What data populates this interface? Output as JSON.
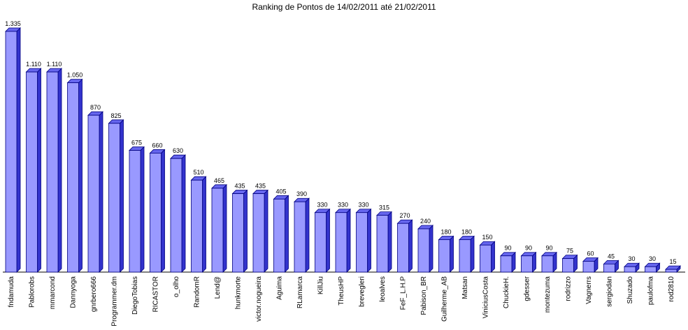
{
  "chart_data": {
    "type": "bar",
    "title": "Ranking de Pontos de 14/02/2011 até 21/02/2011",
    "xlabel": "",
    "ylabel": "",
    "ylim": [
      0,
      1335
    ],
    "grid": false,
    "legend": "none",
    "bar_color": "#9999ff",
    "bar_side_color": "#3333cc",
    "bar_top_color": "#6666ee",
    "bar_outline_color": "#000080",
    "categories": [
      "fndamuda",
      "Pablorobs",
      "mmarcond",
      "Dannyoga",
      "gnrbero666",
      "Programmer.dm",
      "DiegoTobias",
      "RICASTOR",
      "o_olho",
      "RandomR",
      "Lend@",
      "hunkmorte",
      "victor.nogueira",
      "Aguima",
      "RLamarca",
      "KillJiu",
      "TheusHP",
      "brevegleri",
      "leoalves",
      "FeF_L.H.P",
      "Pabison_BR",
      "Guilherme_AB",
      "Matsan",
      "ViniciusCosta",
      "ChuckieH.",
      "gdesser",
      "montezuma",
      "rodrizzo",
      "Vagnerrs",
      "sergiodan",
      "Shuzado",
      "paulofma",
      "rod2810"
    ],
    "values": [
      1335,
      1110,
      1110,
      1050,
      870,
      825,
      675,
      660,
      630,
      510,
      465,
      435,
      435,
      405,
      390,
      330,
      330,
      330,
      315,
      270,
      240,
      180,
      180,
      150,
      90,
      90,
      90,
      75,
      60,
      45,
      30,
      30,
      15
    ],
    "value_labels": [
      "1.335",
      "1.110",
      "1.110",
      "1.050",
      "870",
      "825",
      "675",
      "660",
      "630",
      "510",
      "465",
      "435",
      "435",
      "405",
      "390",
      "330",
      "330",
      "330",
      "315",
      "270",
      "240",
      "180",
      "180",
      "150",
      "90",
      "90",
      "90",
      "75",
      "60",
      "45",
      "30",
      "30",
      "15"
    ]
  }
}
